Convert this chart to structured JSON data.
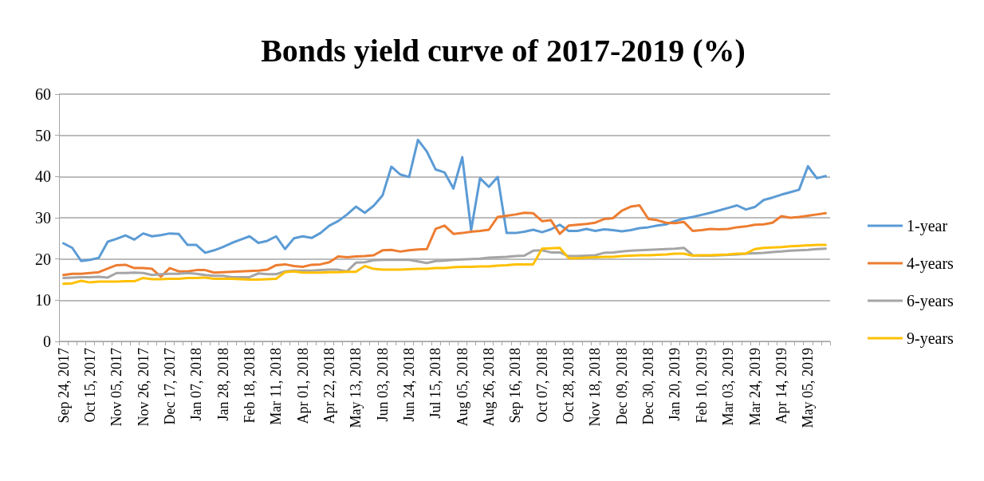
{
  "chart_data": {
    "type": "line",
    "title": "Bonds yield curve of 2017-2019 (%)",
    "categories": [
      "Sep 24, 2017",
      null,
      null,
      "Oct 15, 2017",
      null,
      null,
      "Nov 05, 2017",
      null,
      null,
      "Nov 26, 2017",
      null,
      null,
      "Dec 17, 2017",
      null,
      null,
      "Jan 07, 2018",
      null,
      null,
      "Jan 28, 2018",
      null,
      null,
      "Feb 18, 2018",
      null,
      null,
      "Mar 11, 2018",
      null,
      null,
      "Apr 01, 2018",
      null,
      null,
      "Apr 22, 2018",
      null,
      null,
      "May 13, 2018",
      null,
      null,
      "Jun 03, 2018",
      null,
      null,
      "Jun 24, 2018",
      null,
      null,
      "Jul 15, 2018",
      null,
      null,
      "Aug 05, 2018",
      null,
      null,
      "Aug 26, 2018",
      null,
      null,
      "Sep 16, 2018",
      null,
      null,
      "Oct 07, 2018",
      null,
      null,
      "Oct 28, 2018",
      null,
      null,
      "Nov 18, 2018",
      null,
      null,
      "Dec 09, 2018",
      null,
      null,
      "Dec 30, 2018",
      null,
      null,
      "Jan 20, 2019",
      null,
      null,
      "Feb 10, 2019",
      null,
      null,
      "Mar 03, 2019",
      null,
      null,
      "Mar 24, 2019",
      null,
      null,
      "Apr 14, 2019",
      null,
      null,
      "May 05, 2019",
      null,
      null
    ],
    "series": [
      {
        "name": "1-year",
        "color": "#5b9bd5",
        "values": [
          23.8,
          22.7,
          19.5,
          19.8,
          20.3,
          24.2,
          24.9,
          25.7,
          24.7,
          26.2,
          25.5,
          25.8,
          26.2,
          26.1,
          23.4,
          23.4,
          21.5,
          22.1,
          22.9,
          23.9,
          24.7,
          25.5,
          23.9,
          24.4,
          25.5,
          22.4,
          25.0,
          25.5,
          25.1,
          26.3,
          28.1,
          29.2,
          30.8,
          32.7,
          31.2,
          32.9,
          35.4,
          42.4,
          40.5,
          39.9,
          48.9,
          46.1,
          41.7,
          41.0,
          37.1,
          44.7,
          27.0,
          39.6,
          37.5,
          39.9,
          26.3,
          26.3,
          26.6,
          27.1,
          26.5,
          27.2,
          28.3,
          26.8,
          26.8,
          27.3,
          26.8,
          27.2,
          27.0,
          26.7,
          27.0,
          27.5,
          27.7,
          28.1,
          28.4,
          29.2,
          29.8,
          30.2,
          30.7,
          31.2,
          31.8,
          32.4,
          33.0,
          32.0,
          32.6,
          34.3,
          34.9,
          35.6,
          36.2,
          36.8,
          42.5,
          39.6,
          40.1
        ]
      },
      {
        "name": "4-years",
        "color": "#ed7d31",
        "values": [
          16.1,
          16.4,
          16.4,
          16.6,
          16.8,
          17.7,
          18.5,
          18.6,
          17.8,
          17.8,
          17.6,
          15.7,
          17.8,
          17.0,
          17.0,
          17.3,
          17.3,
          16.7,
          16.8,
          16.9,
          17.0,
          17.1,
          17.2,
          17.4,
          18.5,
          18.7,
          18.3,
          18.1,
          18.6,
          18.7,
          19.2,
          20.6,
          20.4,
          20.6,
          20.7,
          20.9,
          22.1,
          22.2,
          21.8,
          22.1,
          22.3,
          22.4,
          27.3,
          28.1,
          26.1,
          26.3,
          26.6,
          26.8,
          27.1,
          30.2,
          30.5,
          30.8,
          31.2,
          31.1,
          29.2,
          29.4,
          26.1,
          28.1,
          28.3,
          28.5,
          28.8,
          29.7,
          29.9,
          31.7,
          32.7,
          33.0,
          29.7,
          29.4,
          28.8,
          28.7,
          29.0,
          26.8,
          27.0,
          27.3,
          27.2,
          27.3,
          27.7,
          27.9,
          28.3,
          28.4,
          28.8,
          30.4,
          30.0,
          30.2,
          30.5,
          30.8,
          31.1
        ]
      },
      {
        "name": "6-years",
        "color": "#a5a5a5",
        "values": [
          15.4,
          15.5,
          15.6,
          15.6,
          15.7,
          15.5,
          16.6,
          16.6,
          16.7,
          16.6,
          16.1,
          16.3,
          16.4,
          16.4,
          16.6,
          16.4,
          16.1,
          15.9,
          15.9,
          15.6,
          15.6,
          15.6,
          16.5,
          16.3,
          16.3,
          17.0,
          17.2,
          17.2,
          17.2,
          17.3,
          17.4,
          17.4,
          17.0,
          19.1,
          19.2,
          19.7,
          19.8,
          19.8,
          19.8,
          19.8,
          19.4,
          19.0,
          19.5,
          19.6,
          19.8,
          19.9,
          20.0,
          20.1,
          20.3,
          20.4,
          20.5,
          20.7,
          20.8,
          22.0,
          22.1,
          21.6,
          21.6,
          20.7,
          20.7,
          20.8,
          20.9,
          21.5,
          21.6,
          21.8,
          22.0,
          22.1,
          22.2,
          22.3,
          22.4,
          22.5,
          22.7,
          20.9,
          20.8,
          20.8,
          20.9,
          21.0,
          21.1,
          21.3,
          21.4,
          21.5,
          21.7,
          21.8,
          22.0,
          22.1,
          22.2,
          22.4,
          22.5
        ]
      },
      {
        "name": "9-years",
        "color": "#ffc000",
        "values": [
          14.0,
          14.1,
          14.7,
          14.3,
          14.5,
          14.5,
          14.5,
          14.6,
          14.6,
          15.4,
          15.1,
          15.1,
          15.2,
          15.2,
          15.4,
          15.4,
          15.5,
          15.2,
          15.2,
          15.2,
          15.1,
          15.0,
          15.0,
          15.1,
          15.2,
          16.8,
          17.0,
          16.7,
          16.7,
          16.7,
          16.8,
          16.8,
          16.9,
          16.9,
          18.3,
          17.6,
          17.4,
          17.4,
          17.4,
          17.5,
          17.6,
          17.6,
          17.8,
          17.8,
          18.0,
          18.1,
          18.1,
          18.2,
          18.2,
          18.4,
          18.5,
          18.7,
          18.7,
          18.7,
          22.5,
          22.6,
          22.7,
          20.2,
          20.2,
          20.3,
          20.4,
          20.5,
          20.5,
          20.7,
          20.8,
          20.9,
          20.9,
          21.0,
          21.1,
          21.3,
          21.3,
          20.8,
          20.9,
          20.9,
          21.0,
          21.1,
          21.3,
          21.3,
          22.4,
          22.7,
          22.8,
          22.9,
          23.1,
          23.2,
          23.3,
          23.4,
          23.4
        ]
      }
    ],
    "ylim": [
      0,
      60
    ],
    "yticks": [
      0,
      10,
      20,
      30,
      40,
      50,
      60
    ],
    "grid": "y",
    "legend": "right",
    "marker": "none",
    "line_style": "solid"
  }
}
